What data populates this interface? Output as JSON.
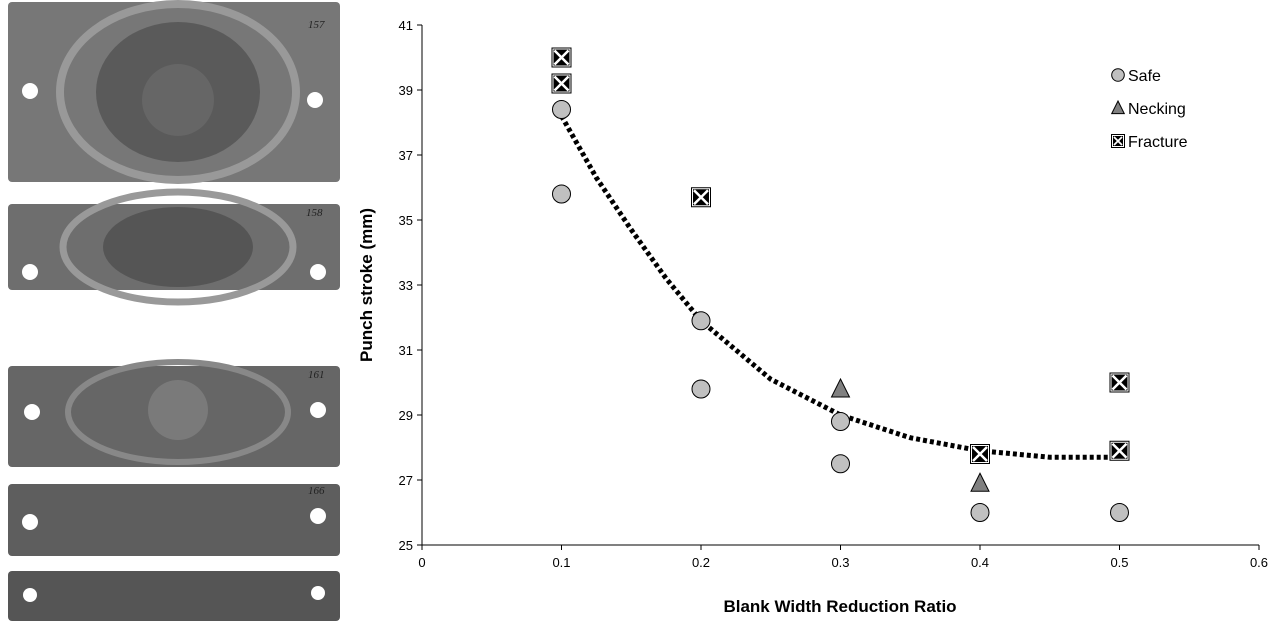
{
  "photos": {
    "labels": [
      "157",
      "158",
      "161",
      "166"
    ]
  },
  "chart_data": {
    "type": "scatter",
    "x_label": "Blank Width Reduction Ratio",
    "y_label": "Punch stroke (mm)",
    "xlim": [
      0,
      0.6
    ],
    "xticks": [
      0,
      0.1,
      0.2,
      0.3,
      0.4,
      0.5,
      0.6
    ],
    "ylim": [
      25,
      41
    ],
    "yticks": [
      25,
      27,
      29,
      31,
      33,
      35,
      37,
      39,
      41
    ],
    "legend": "top-right",
    "series": [
      {
        "name": "Safe",
        "marker": "circle",
        "color": "#c0c0c0",
        "x": [
          0.1,
          0.1,
          0.2,
          0.2,
          0.3,
          0.3,
          0.4,
          0.5
        ],
        "values": [
          38.4,
          35.8,
          31.9,
          29.8,
          28.8,
          27.5,
          26.0,
          26.0
        ]
      },
      {
        "name": "Necking",
        "marker": "triangle",
        "color": "#808080",
        "x": [
          0.3,
          0.4
        ],
        "values": [
          29.8,
          26.9
        ]
      },
      {
        "name": "Fracture",
        "marker": "x-square",
        "color": "#000000",
        "x": [
          0.1,
          0.1,
          0.2,
          0.4,
          0.5,
          0.5
        ],
        "values": [
          40.0,
          39.2,
          35.7,
          27.8,
          30.0,
          27.9
        ]
      }
    ],
    "trendline": {
      "color": "#000000",
      "x": [
        0.1,
        0.125,
        0.15,
        0.175,
        0.2,
        0.25,
        0.3,
        0.35,
        0.4,
        0.45,
        0.5
      ],
      "values": [
        38.2,
        36.3,
        34.7,
        33.2,
        31.9,
        30.1,
        29.0,
        28.3,
        27.9,
        27.7,
        27.7
      ]
    }
  }
}
